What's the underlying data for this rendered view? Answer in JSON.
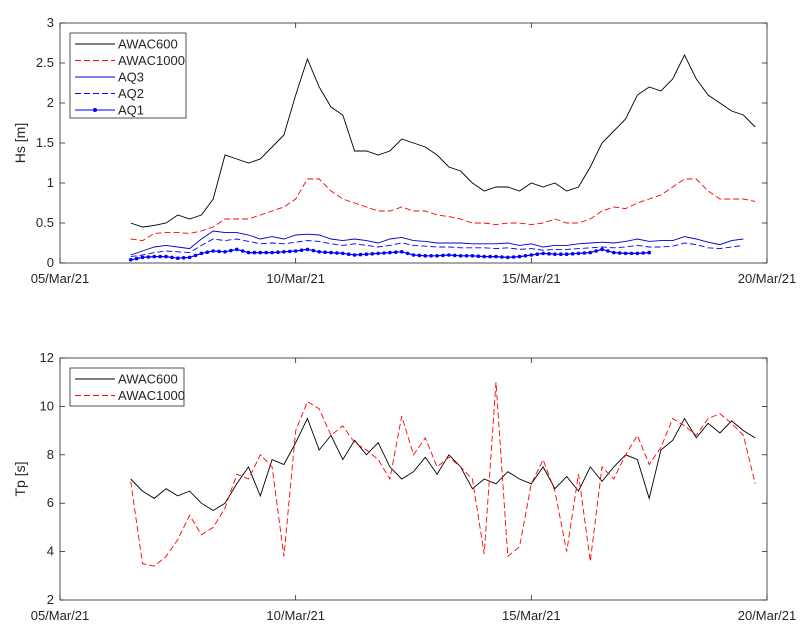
{
  "chart_data": [
    {
      "type": "line",
      "ylabel": "Hs [m]",
      "xlabel": "",
      "ylim": [
        0,
        3
      ],
      "yticks": [
        "0",
        "0.5",
        "1",
        "1.5",
        "2",
        "2.5",
        "3"
      ],
      "xlim": [
        "2021-03-05",
        "2021-03-20"
      ],
      "xticks": [
        {
          "date": "2021-03-05",
          "label": "05/Mar/21"
        },
        {
          "date": "2021-03-10",
          "label": "10/Mar/21"
        },
        {
          "date": "2021-03-15",
          "label": "15/Mar/21"
        },
        {
          "date": "2021-03-20",
          "label": "20/Mar/21"
        }
      ],
      "legend_placement": "top-left",
      "grid": false,
      "x": [
        "2021-03-06 12:00",
        "2021-03-06 18:00",
        "2021-03-07 00:00",
        "2021-03-07 06:00",
        "2021-03-07 12:00",
        "2021-03-07 18:00",
        "2021-03-08 00:00",
        "2021-03-08 06:00",
        "2021-03-08 12:00",
        "2021-03-08 18:00",
        "2021-03-09 00:00",
        "2021-03-09 06:00",
        "2021-03-09 12:00",
        "2021-03-09 18:00",
        "2021-03-10 00:00",
        "2021-03-10 06:00",
        "2021-03-10 12:00",
        "2021-03-10 18:00",
        "2021-03-11 00:00",
        "2021-03-11 06:00",
        "2021-03-11 12:00",
        "2021-03-11 18:00",
        "2021-03-12 00:00",
        "2021-03-12 06:00",
        "2021-03-12 12:00",
        "2021-03-12 18:00",
        "2021-03-13 00:00",
        "2021-03-13 06:00",
        "2021-03-13 12:00",
        "2021-03-13 18:00",
        "2021-03-14 00:00",
        "2021-03-14 06:00",
        "2021-03-14 12:00",
        "2021-03-14 18:00",
        "2021-03-15 00:00",
        "2021-03-15 06:00",
        "2021-03-15 12:00",
        "2021-03-15 18:00",
        "2021-03-16 00:00",
        "2021-03-16 06:00",
        "2021-03-16 12:00",
        "2021-03-16 18:00",
        "2021-03-17 00:00",
        "2021-03-17 06:00",
        "2021-03-17 12:00",
        "2021-03-17 18:00",
        "2021-03-18 00:00",
        "2021-03-18 06:00",
        "2021-03-18 12:00",
        "2021-03-18 18:00",
        "2021-03-19 00:00",
        "2021-03-19 06:00",
        "2021-03-19 12:00",
        "2021-03-19 18:00"
      ],
      "series": [
        {
          "name": "AWAC600",
          "color": "#000000",
          "style": "solid",
          "marker": "none",
          "values": [
            0.5,
            0.45,
            0.47,
            0.5,
            0.6,
            0.55,
            0.6,
            0.8,
            1.35,
            1.3,
            1.25,
            1.3,
            1.45,
            1.6,
            2.1,
            2.55,
            2.2,
            1.95,
            1.85,
            1.4,
            1.4,
            1.35,
            1.4,
            1.55,
            1.5,
            1.45,
            1.35,
            1.2,
            1.15,
            1.0,
            0.9,
            0.95,
            0.95,
            0.9,
            1.0,
            0.95,
            1.0,
            0.9,
            0.95,
            1.2,
            1.5,
            1.65,
            1.8,
            2.1,
            2.2,
            2.15,
            2.3,
            2.6,
            2.3,
            2.1,
            2.0,
            1.9,
            1.85,
            1.7
          ]
        },
        {
          "name": "AWAC1000",
          "color": "#ff0000",
          "style": "dashed",
          "marker": "none",
          "values": [
            0.3,
            0.28,
            0.37,
            0.38,
            0.38,
            0.37,
            0.4,
            0.45,
            0.55,
            0.55,
            0.55,
            0.6,
            0.65,
            0.7,
            0.8,
            1.05,
            1.05,
            0.9,
            0.8,
            0.75,
            0.7,
            0.65,
            0.65,
            0.7,
            0.65,
            0.65,
            0.6,
            0.58,
            0.55,
            0.5,
            0.5,
            0.48,
            0.5,
            0.5,
            0.48,
            0.5,
            0.55,
            0.5,
            0.5,
            0.55,
            0.65,
            0.7,
            0.68,
            0.75,
            0.8,
            0.85,
            0.95,
            1.05,
            1.05,
            0.9,
            0.8,
            0.8,
            0.8,
            0.77
          ]
        },
        {
          "name": "AQ3",
          "color": "#0000cc",
          "style": "solid",
          "marker": "none",
          "values": [
            0.1,
            0.15,
            0.2,
            0.22,
            0.2,
            0.18,
            0.3,
            0.4,
            0.38,
            0.38,
            0.35,
            0.3,
            0.33,
            0.3,
            0.35,
            0.36,
            0.35,
            0.3,
            0.28,
            0.3,
            0.28,
            0.25,
            0.3,
            0.32,
            0.28,
            0.27,
            0.25,
            0.25,
            0.25,
            0.24,
            0.24,
            0.24,
            0.25,
            0.22,
            0.24,
            0.2,
            0.22,
            0.22,
            0.24,
            0.25,
            0.26,
            0.25,
            0.27,
            0.3,
            0.27,
            0.28,
            0.28,
            0.33,
            0.3,
            0.26,
            0.23,
            0.28,
            0.3,
            null
          ]
        },
        {
          "name": "AQ2",
          "color": "#0000ff",
          "style": "dashed",
          "marker": "none",
          "values": [
            0.08,
            0.1,
            0.13,
            0.15,
            0.14,
            0.13,
            0.22,
            0.3,
            0.28,
            0.3,
            0.27,
            0.24,
            0.25,
            0.24,
            0.26,
            0.28,
            0.27,
            0.24,
            0.22,
            0.24,
            0.22,
            0.2,
            0.22,
            0.25,
            0.22,
            0.21,
            0.2,
            0.2,
            0.19,
            0.19,
            0.19,
            0.18,
            0.19,
            0.17,
            0.18,
            0.16,
            0.17,
            0.17,
            0.18,
            0.19,
            0.2,
            0.19,
            0.2,
            0.22,
            0.2,
            0.2,
            0.21,
            0.25,
            0.23,
            0.19,
            0.18,
            0.2,
            0.22,
            null
          ]
        },
        {
          "name": "AQ1",
          "color": "#0000ff",
          "style": "solid",
          "marker": "dot",
          "values": [
            0.04,
            0.07,
            0.08,
            0.08,
            0.06,
            0.07,
            0.12,
            0.15,
            0.14,
            0.17,
            0.13,
            0.13,
            0.13,
            0.14,
            0.15,
            0.17,
            0.14,
            0.13,
            0.12,
            0.1,
            0.11,
            0.12,
            0.13,
            0.14,
            0.1,
            0.09,
            0.09,
            0.1,
            0.09,
            0.09,
            0.08,
            0.08,
            0.07,
            0.08,
            0.1,
            0.12,
            0.11,
            0.11,
            0.12,
            0.13,
            0.17,
            0.13,
            0.12,
            0.12,
            0.13,
            null,
            null,
            null,
            null,
            null,
            null,
            null,
            null,
            null
          ]
        }
      ]
    },
    {
      "type": "line",
      "ylabel": "Tp [s]",
      "xlabel": "",
      "ylim": [
        2,
        12
      ],
      "yticks": [
        "2",
        "4",
        "6",
        "8",
        "10",
        "12"
      ],
      "xlim": [
        "2021-03-05",
        "2021-03-20"
      ],
      "xticks": [
        {
          "date": "2021-03-05",
          "label": "05/Mar/21"
        },
        {
          "date": "2021-03-10",
          "label": "10/Mar/21"
        },
        {
          "date": "2021-03-15",
          "label": "15/Mar/21"
        },
        {
          "date": "2021-03-20",
          "label": "20/Mar/21"
        }
      ],
      "legend_placement": "top-left",
      "grid": false,
      "x_same_as_first": true,
      "series": [
        {
          "name": "AWAC600",
          "color": "#000000",
          "style": "solid",
          "marker": "none",
          "values": [
            7.0,
            6.5,
            6.2,
            6.6,
            6.3,
            6.5,
            6.0,
            5.7,
            6.0,
            6.8,
            7.5,
            6.3,
            7.8,
            7.6,
            8.5,
            9.5,
            8.2,
            8.8,
            7.8,
            8.6,
            8.0,
            8.5,
            7.5,
            7.0,
            7.3,
            7.9,
            7.2,
            8.0,
            7.5,
            6.6,
            7.0,
            6.8,
            7.3,
            7.0,
            6.8,
            7.5,
            6.6,
            7.1,
            6.5,
            7.5,
            6.9,
            7.5,
            8.0,
            7.8,
            6.2,
            8.2,
            8.6,
            9.5,
            8.7,
            9.3,
            8.9,
            9.4,
            9.0,
            8.7
          ]
        },
        {
          "name": "AWAC1000",
          "color": "#ff0000",
          "style": "dashed",
          "marker": "none",
          "values": [
            6.9,
            3.5,
            3.4,
            3.8,
            4.5,
            5.5,
            4.7,
            5.0,
            5.8,
            7.2,
            7.0,
            8.0,
            7.5,
            3.8,
            9.0,
            10.2,
            9.9,
            8.8,
            9.2,
            8.5,
            8.2,
            7.8,
            7.0,
            9.6,
            8.0,
            8.7,
            7.5,
            7.9,
            7.5,
            7.0,
            3.9,
            11.0,
            3.8,
            4.2,
            6.8,
            7.8,
            6.5,
            4.0,
            7.2,
            3.6,
            7.5,
            7.0,
            8.0,
            8.8,
            7.6,
            8.3,
            9.5,
            9.2,
            8.8,
            9.5,
            9.7,
            9.3,
            8.8,
            6.8
          ]
        }
      ]
    }
  ]
}
